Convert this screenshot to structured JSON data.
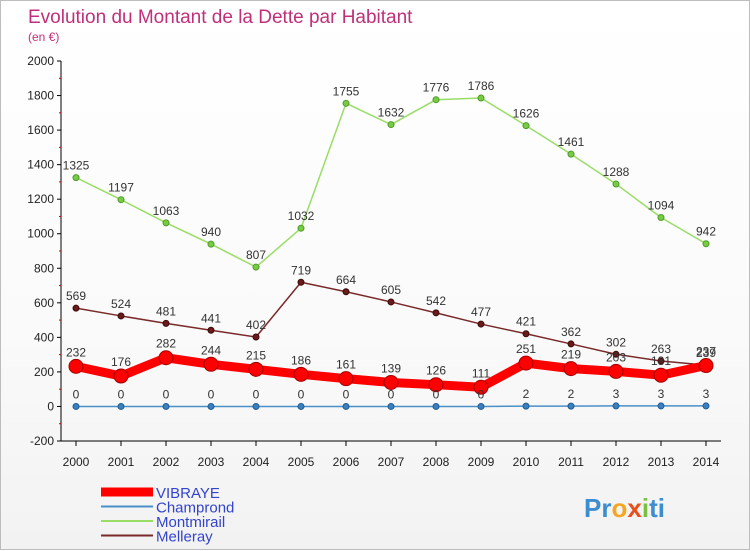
{
  "chart_data": {
    "type": "line",
    "title": "Evolution du Montant de la Dette par Habitant",
    "subtitle": "(en €)",
    "x": [
      "2000",
      "2001",
      "2002",
      "2003",
      "2004",
      "2005",
      "2006",
      "2007",
      "2008",
      "2009",
      "2010",
      "2011",
      "2012",
      "2013",
      "2014"
    ],
    "ylim": [
      -200,
      2000
    ],
    "yticks": [
      -200,
      0,
      200,
      400,
      600,
      800,
      1000,
      1200,
      1400,
      1600,
      1800,
      2000
    ],
    "grid": false,
    "legend_position": "bottom-left",
    "series": [
      {
        "name": "VIBRAYE",
        "color": "#ff0000",
        "values": [
          232,
          176,
          282,
          244,
          215,
          186,
          161,
          139,
          126,
          111,
          251,
          219,
          203,
          181,
          237
        ]
      },
      {
        "name": "Champrond",
        "color": "#4a90c8",
        "values": [
          0,
          0,
          0,
          0,
          0,
          0,
          0,
          0,
          0,
          0,
          2,
          2,
          3,
          3,
          3
        ]
      },
      {
        "name": "Montmirail",
        "color": "#99dd66",
        "values": [
          1325,
          1197,
          1063,
          940,
          807,
          1032,
          1755,
          1632,
          1776,
          1786,
          1626,
          1461,
          1288,
          1094,
          942
        ]
      },
      {
        "name": "Melleray",
        "color": "#7a2a2a",
        "values": [
          569,
          524,
          481,
          441,
          402,
          719,
          664,
          605,
          542,
          477,
          421,
          362,
          302,
          263,
          239
        ]
      }
    ]
  },
  "logo": {
    "text": "Proxiti",
    "letters": [
      "P",
      "r",
      "o",
      "x",
      "i",
      "t",
      "i"
    ],
    "colors": [
      "#3c8ed0",
      "#3c8ed0",
      "#f5a623",
      "#e94e1b",
      "#7ac143",
      "#3c8ed0",
      "#3c8ed0"
    ]
  }
}
